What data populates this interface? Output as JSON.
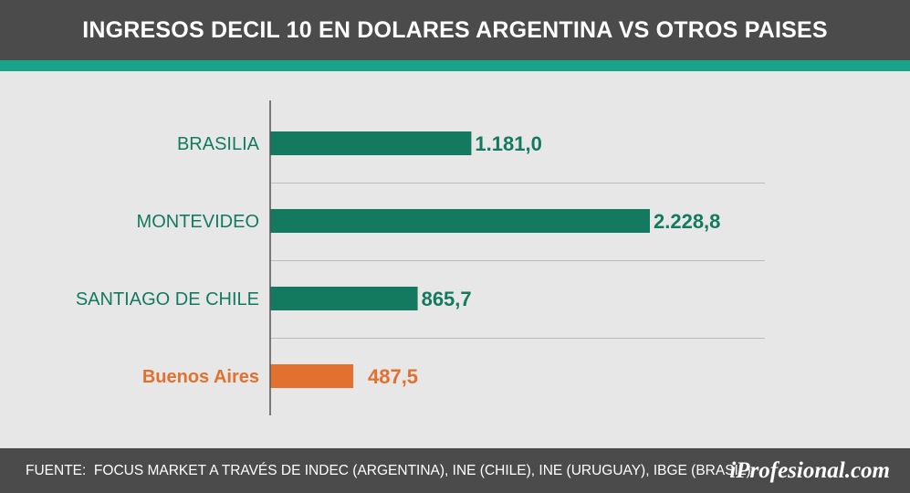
{
  "header": {
    "title": "INGRESOS DECIL 10 EN DOLARES ARGENTINA VS OTROS PAISES"
  },
  "footer": {
    "source": "FUENTE:  FOCUS MARKET A TRAVÉS DE INDEC (ARGENTINA), INE (CHILE), INE (URUGUAY), IBGE (BRASIL)",
    "brand": "iProfesional.com"
  },
  "colors": {
    "header_bg": "#4b4b4b",
    "accent": "#1aa389",
    "background": "#e7e7e7",
    "bar_primary": "#137a5f",
    "bar_highlight": "#e2702e"
  },
  "chart_data": {
    "type": "bar",
    "orientation": "horizontal",
    "title": "INGRESOS DECIL 10 EN DOLARES ARGENTINA VS OTROS PAISES",
    "categories": [
      "BRASILIA",
      "MONTEVIDEO",
      "SANTIAGO DE CHILE",
      "Buenos Aires"
    ],
    "values": [
      1181.0,
      2228.8,
      865.7,
      487.5
    ],
    "value_labels": [
      "1.181,0",
      "2.228,8",
      "865,7",
      "487,5"
    ],
    "highlight_index": 3,
    "xlim": [
      0,
      2228.8
    ],
    "grid": false,
    "legend": "none"
  }
}
